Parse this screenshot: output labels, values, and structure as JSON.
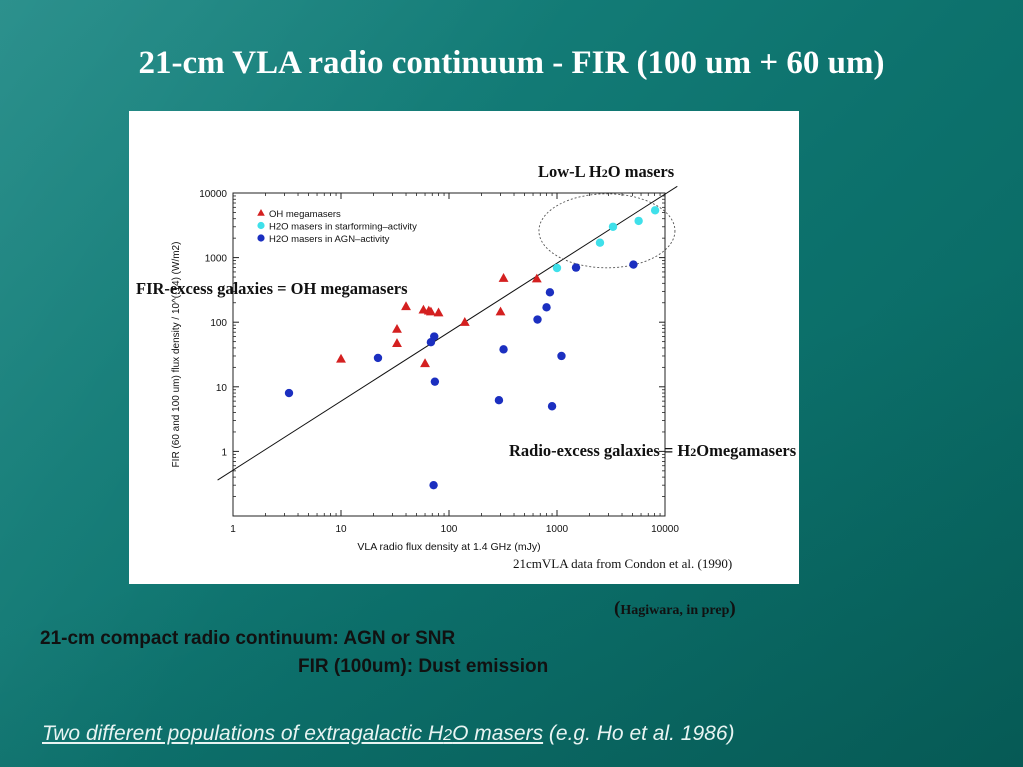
{
  "slide": {
    "title": "21-cm VLA radio continuum - FIR (100 um + 60 um)",
    "annotations": {
      "low_l_prefix": "Low-L H",
      "low_l_sub": "2",
      "low_l_suffix": "O masers",
      "fir_excess": "FIR-excess galaxies = OH megamasers",
      "radio_excess_prefix": "Radio-excess galaxies = H",
      "radio_excess_sub": "2",
      "radio_excess_suffix": "Omegamasers"
    },
    "credit": "21cmVLA data   from Condon et al. (1990)",
    "hagiwara": {
      "open": "(",
      "text": "Hagiwara, in prep",
      "close": ")"
    },
    "bullets": {
      "line1": "21-cm compact radio continuum:   AGN or SNR",
      "line2": "FIR (100um):  Dust emission"
    },
    "footer": {
      "link_prefix": "Two different populations of extragalactic  H",
      "link_sub": "2",
      "link_suffix": "O masers",
      "cite": "  (e.g. Ho et al. 1986)"
    }
  },
  "chart_data": {
    "type": "scatter",
    "x_scale": "log",
    "y_scale": "log",
    "xlim": [
      1,
      10000
    ],
    "ylim": [
      0.1,
      10000
    ],
    "xlabel": "VLA radio flux density at  1.4 GHz    (mJy)",
    "ylabel": "FIR (60 and 100 um) flux density / 10^(-14)  (W/m2)",
    "x_ticks": [
      {
        "value": 1,
        "label": "1"
      },
      {
        "value": 10,
        "label": "10"
      },
      {
        "value": 100,
        "label": "100"
      },
      {
        "value": 1000,
        "label": "1000"
      },
      {
        "value": 10000,
        "label": "10000"
      }
    ],
    "y_ticks": [
      {
        "value": 1,
        "label": "1"
      },
      {
        "value": 10,
        "label": "10"
      },
      {
        "value": 100,
        "label": "100"
      },
      {
        "value": 1000,
        "label": "1000"
      },
      {
        "value": 10000,
        "label": "10000"
      }
    ],
    "legend_position": "top-left",
    "series": [
      {
        "name": "OH megamasers",
        "marker": "triangle",
        "color": "#d42020",
        "points": [
          [
            10.0,
            27
          ],
          [
            33,
            78
          ],
          [
            33,
            47
          ],
          [
            40,
            175
          ],
          [
            58,
            155
          ],
          [
            60,
            23
          ],
          [
            65,
            150
          ],
          [
            68,
            145
          ],
          [
            80,
            140
          ],
          [
            140,
            100
          ],
          [
            300,
            145
          ],
          [
            320,
            480
          ],
          [
            650,
            470
          ]
        ]
      },
      {
        "name": "H2O masers in starforming–activity",
        "marker": "circle",
        "color": "#3fe0ea",
        "points": [
          [
            1000,
            690
          ],
          [
            2500,
            1700
          ],
          [
            3300,
            3000
          ],
          [
            5700,
            3700
          ],
          [
            8100,
            5400
          ]
        ]
      },
      {
        "name": "H2O masers in AGN–activity",
        "marker": "circle",
        "color": "#1b2fc0",
        "points": [
          [
            3.3,
            8
          ],
          [
            22,
            28
          ],
          [
            68,
            49
          ],
          [
            73,
            60
          ],
          [
            74,
            12
          ],
          [
            72,
            0.3
          ],
          [
            290,
            6.2
          ],
          [
            320,
            38
          ],
          [
            660,
            110
          ],
          [
            800,
            170
          ],
          [
            860,
            290
          ],
          [
            900,
            5
          ],
          [
            1100,
            30
          ],
          [
            1500,
            700
          ],
          [
            5100,
            780
          ]
        ]
      }
    ],
    "fit_line": {
      "x": [
        0.72,
        13000
      ],
      "y": [
        0.36,
        12700
      ]
    },
    "ellipse": {
      "x_center": 2900,
      "y_center": 2600
    }
  }
}
